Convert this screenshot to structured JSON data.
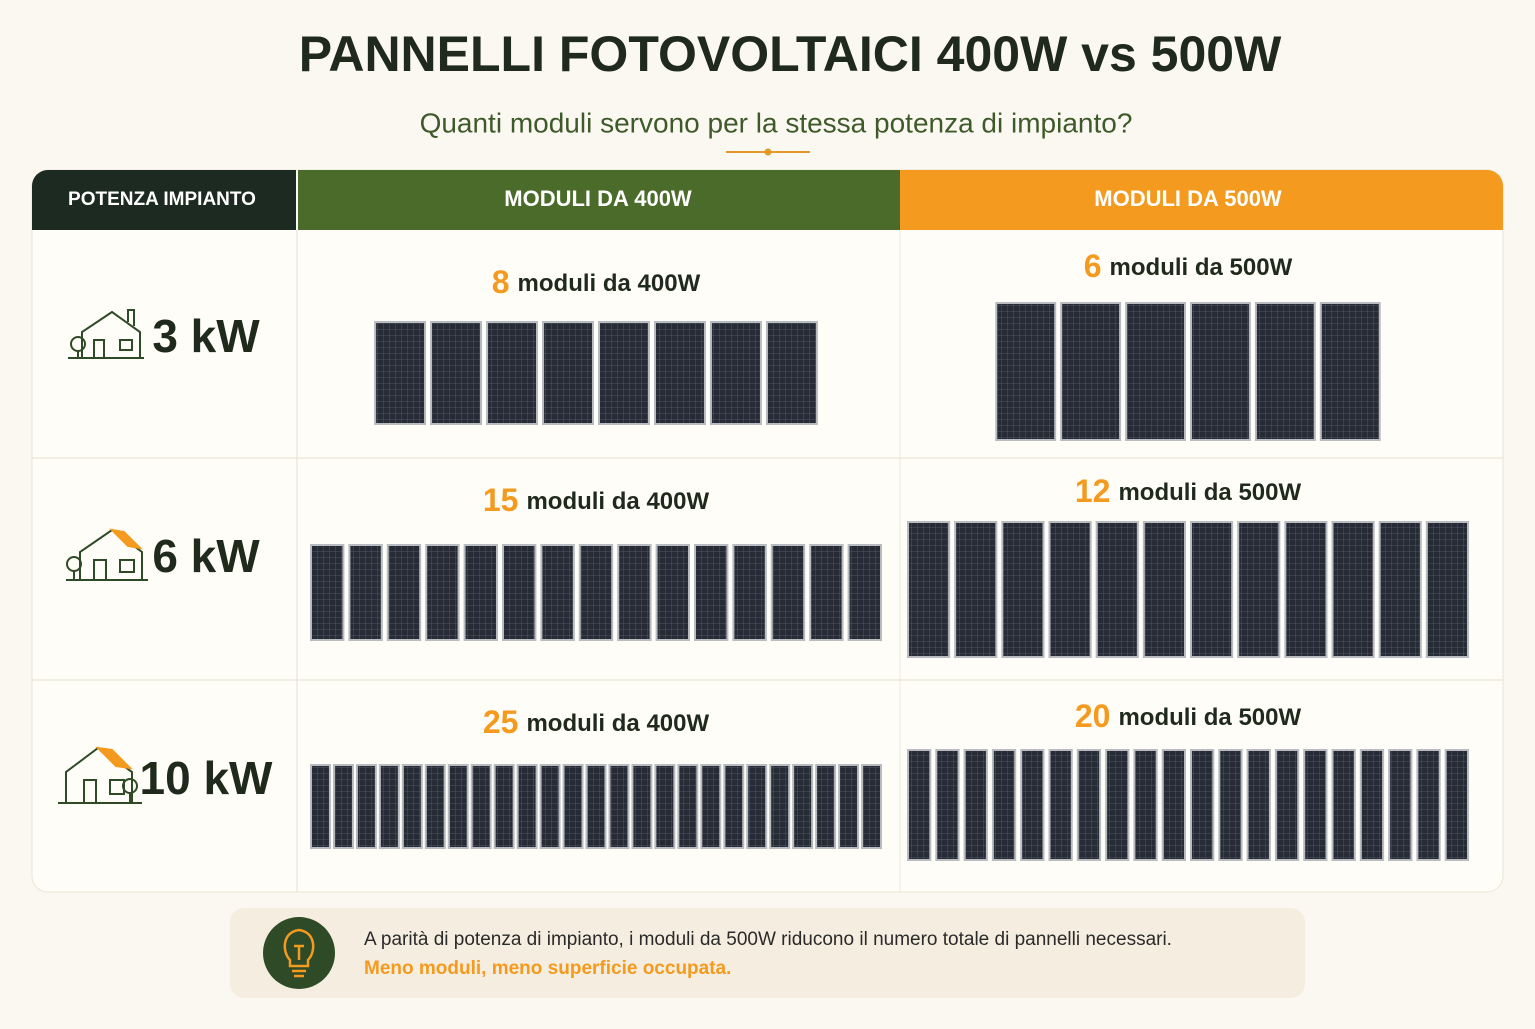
{
  "header": {
    "title": "PANNELLI FOTOVOLTAICI 400W vs 500W",
    "subtitle": "Quanti moduli servono per la stessa potenza di impianto?"
  },
  "table": {
    "columns": [
      "POTENZA IMPIANTO",
      "MODULI DA 400W",
      "MODULI DA 500W"
    ],
    "rows": [
      {
        "power": "3 kW",
        "modules_400": {
          "count": 8,
          "label": "moduli da 400W"
        },
        "modules_500": {
          "count": 6,
          "label": "moduli da 500W"
        }
      },
      {
        "power": "6 kW",
        "modules_400": {
          "count": 15,
          "label": "moduli da 400W"
        },
        "modules_500": {
          "count": 12,
          "label": "moduli da 500W"
        }
      },
      {
        "power": "10 kW",
        "modules_400": {
          "count": 25,
          "label": "moduli da 400W"
        },
        "modules_500": {
          "count": 20,
          "label": "moduli da 500W"
        }
      }
    ]
  },
  "note": {
    "text": "A parità di potenza di impianto, i moduli da 500W riducono il numero totale di pannelli necessari.",
    "highlight": "Meno moduli, meno superficie occupata."
  }
}
